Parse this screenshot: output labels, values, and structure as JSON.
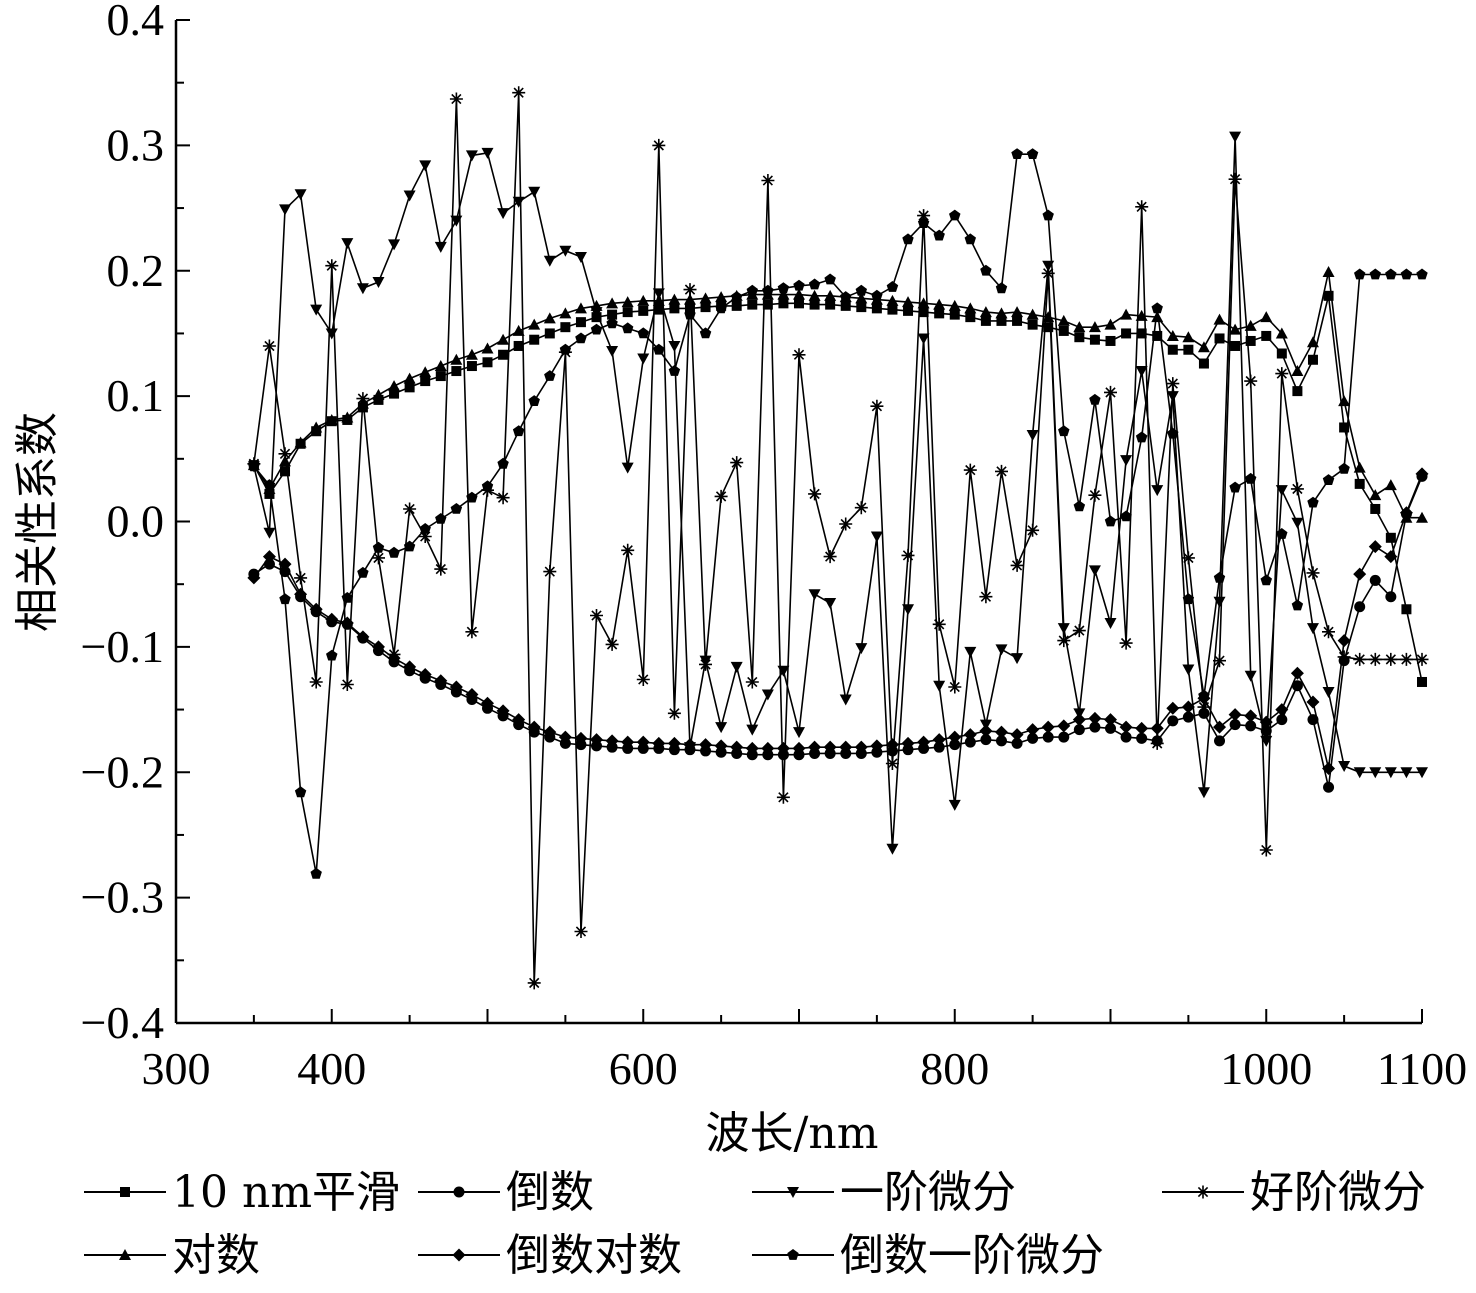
{
  "chart_data": {
    "type": "line",
    "xlabel": "波长/nm",
    "ylabel": "相关性系数",
    "xlim": [
      300,
      1100
    ],
    "ylim": [
      -0.4,
      0.4
    ],
    "xticks": [
      "300",
      "400",
      "600",
      "800",
      "1000",
      "1100"
    ],
    "yticks": [
      "0.4",
      "0.3",
      "0.2",
      "0.1",
      "0.0",
      "−0.1",
      "−0.2",
      "−0.3",
      "−0.4"
    ],
    "grid": false,
    "legend_position": "bottom",
    "x": [
      350,
      360,
      370,
      380,
      390,
      400,
      410,
      420,
      430,
      440,
      450,
      460,
      470,
      480,
      490,
      500,
      510,
      520,
      530,
      540,
      550,
      560,
      570,
      580,
      590,
      600,
      610,
      620,
      630,
      640,
      650,
      660,
      670,
      680,
      690,
      700,
      710,
      720,
      730,
      740,
      750,
      760,
      770,
      780,
      790,
      800,
      810,
      820,
      830,
      840,
      850,
      860,
      870,
      880,
      890,
      900,
      910,
      920,
      930,
      940,
      950,
      960,
      970,
      980,
      990,
      1000,
      1010,
      1020,
      1030,
      1040,
      1050,
      1060,
      1070,
      1080,
      1090,
      1100
    ],
    "series": [
      {
        "name": "10 nm平滑",
        "marker": "square",
        "values": [
          0.045,
          0.022,
          0.04,
          0.062,
          0.072,
          0.08,
          0.081,
          0.091,
          0.097,
          0.102,
          0.107,
          0.112,
          0.116,
          0.12,
          0.124,
          0.127,
          0.133,
          0.14,
          0.145,
          0.15,
          0.155,
          0.159,
          0.163,
          0.165,
          0.167,
          0.168,
          0.169,
          0.17,
          0.17,
          0.171,
          0.172,
          0.172,
          0.173,
          0.173,
          0.174,
          0.174,
          0.173,
          0.173,
          0.172,
          0.171,
          0.17,
          0.169,
          0.168,
          0.167,
          0.166,
          0.165,
          0.163,
          0.16,
          0.16,
          0.16,
          0.157,
          0.155,
          0.152,
          0.147,
          0.145,
          0.144,
          0.15,
          0.15,
          0.148,
          0.137,
          0.137,
          0.126,
          0.146,
          0.14,
          0.144,
          0.148,
          0.134,
          0.104,
          0.129,
          0.18,
          0.075,
          0.03,
          0.01,
          -0.013,
          -0.07,
          -0.128
        ]
      },
      {
        "name": "倒数",
        "marker": "circle",
        "values": [
          -0.042,
          -0.034,
          -0.04,
          -0.06,
          -0.072,
          -0.08,
          -0.082,
          -0.093,
          -0.103,
          -0.112,
          -0.119,
          -0.125,
          -0.13,
          -0.136,
          -0.142,
          -0.149,
          -0.155,
          -0.162,
          -0.168,
          -0.172,
          -0.177,
          -0.178,
          -0.179,
          -0.18,
          -0.181,
          -0.181,
          -0.181,
          -0.182,
          -0.182,
          -0.183,
          -0.184,
          -0.185,
          -0.186,
          -0.186,
          -0.186,
          -0.186,
          -0.185,
          -0.185,
          -0.185,
          -0.185,
          -0.184,
          -0.183,
          -0.182,
          -0.181,
          -0.18,
          -0.178,
          -0.176,
          -0.174,
          -0.175,
          -0.177,
          -0.173,
          -0.172,
          -0.172,
          -0.166,
          -0.164,
          -0.165,
          -0.172,
          -0.173,
          -0.175,
          -0.159,
          -0.156,
          -0.153,
          -0.175,
          -0.162,
          -0.163,
          -0.167,
          -0.158,
          -0.131,
          -0.158,
          -0.212,
          -0.111,
          -0.068,
          -0.047,
          -0.06,
          0.006,
          0.036
        ]
      },
      {
        "name": "一阶微分",
        "marker": "triangle-down",
        "values": [
          0.044,
          -0.009,
          0.249,
          0.261,
          0.169,
          0.15,
          0.222,
          0.186,
          0.191,
          0.221,
          0.26,
          0.284,
          0.219,
          0.24,
          0.292,
          0.294,
          0.246,
          0.255,
          0.263,
          0.208,
          0.216,
          0.211,
          0.167,
          0.136,
          0.043,
          0.13,
          0.182,
          0.14,
          -0.18,
          -0.111,
          -0.164,
          -0.116,
          -0.166,
          -0.138,
          -0.119,
          -0.168,
          -0.058,
          -0.065,
          -0.142,
          -0.101,
          -0.012,
          -0.261,
          -0.07,
          0.146,
          -0.131,
          -0.226,
          -0.104,
          -0.162,
          -0.102,
          -0.109,
          0.069,
          0.204,
          -0.085,
          -0.153,
          -0.039,
          -0.081,
          0.049,
          0.12,
          0.025,
          0.1,
          -0.118,
          -0.216,
          -0.064,
          0.307,
          -0.123,
          -0.175,
          0.025,
          -0.001,
          -0.085,
          -0.136,
          -0.195,
          -0.2,
          -0.2,
          -0.2,
          -0.2,
          -0.2
        ]
      },
      {
        "name": "好阶微分",
        "marker": "asterisk",
        "values": [
          0.046,
          0.14,
          0.054,
          -0.045,
          -0.128,
          0.204,
          -0.13,
          0.098,
          -0.029,
          -0.106,
          0.01,
          -0.012,
          -0.038,
          0.337,
          -0.088,
          0.025,
          0.019,
          0.342,
          -0.368,
          -0.04,
          0.135,
          -0.327,
          -0.075,
          -0.098,
          -0.023,
          -0.126,
          0.3,
          -0.153,
          0.185,
          -0.114,
          0.02,
          0.047,
          -0.128,
          0.272,
          -0.22,
          0.133,
          0.022,
          -0.028,
          -0.002,
          0.011,
          0.092,
          -0.193,
          -0.027,
          0.244,
          -0.082,
          -0.132,
          0.041,
          -0.06,
          0.04,
          -0.035,
          -0.007,
          0.198,
          -0.095,
          -0.087,
          0.021,
          0.103,
          -0.097,
          0.251,
          -0.177,
          0.11,
          -0.029,
          -0.148,
          -0.111,
          0.273,
          0.112,
          -0.262,
          0.118,
          0.026,
          -0.041,
          -0.088,
          -0.108,
          -0.11,
          -0.11,
          -0.11,
          -0.11,
          -0.11
        ]
      },
      {
        "name": "对数",
        "marker": "triangle-up",
        "values": [
          0.045,
          0.026,
          0.048,
          0.063,
          0.075,
          0.081,
          0.083,
          0.094,
          0.101,
          0.108,
          0.114,
          0.119,
          0.124,
          0.129,
          0.133,
          0.138,
          0.145,
          0.152,
          0.157,
          0.162,
          0.166,
          0.17,
          0.172,
          0.174,
          0.175,
          0.176,
          0.176,
          0.177,
          0.177,
          0.178,
          0.179,
          0.18,
          0.181,
          0.181,
          0.181,
          0.181,
          0.18,
          0.18,
          0.179,
          0.178,
          0.177,
          0.176,
          0.175,
          0.174,
          0.173,
          0.172,
          0.17,
          0.167,
          0.166,
          0.167,
          0.165,
          0.163,
          0.16,
          0.155,
          0.155,
          0.157,
          0.165,
          0.164,
          0.163,
          0.148,
          0.147,
          0.139,
          0.161,
          0.153,
          0.156,
          0.163,
          0.15,
          0.12,
          0.143,
          0.199,
          0.096,
          0.043,
          0.021,
          0.029,
          0.003,
          0.003
        ]
      },
      {
        "name": "倒数对数",
        "marker": "diamond",
        "values": [
          -0.045,
          -0.028,
          -0.034,
          -0.058,
          -0.07,
          -0.078,
          -0.081,
          -0.092,
          -0.1,
          -0.109,
          -0.116,
          -0.122,
          -0.127,
          -0.132,
          -0.138,
          -0.145,
          -0.151,
          -0.158,
          -0.164,
          -0.168,
          -0.172,
          -0.173,
          -0.174,
          -0.175,
          -0.176,
          -0.176,
          -0.177,
          -0.177,
          -0.178,
          -0.178,
          -0.179,
          -0.18,
          -0.181,
          -0.181,
          -0.181,
          -0.181,
          -0.18,
          -0.18,
          -0.18,
          -0.18,
          -0.179,
          -0.178,
          -0.177,
          -0.176,
          -0.174,
          -0.172,
          -0.17,
          -0.167,
          -0.168,
          -0.17,
          -0.166,
          -0.164,
          -0.163,
          -0.158,
          -0.157,
          -0.158,
          -0.164,
          -0.165,
          -0.165,
          -0.149,
          -0.148,
          -0.141,
          -0.164,
          -0.154,
          -0.155,
          -0.16,
          -0.15,
          -0.121,
          -0.144,
          -0.197,
          -0.095,
          -0.042,
          -0.02,
          -0.028,
          0.007,
          0.038
        ]
      },
      {
        "name": "倒数一阶微分",
        "marker": "pentagon",
        "values": [
          0.044,
          0.029,
          -0.062,
          -0.216,
          -0.281,
          -0.107,
          -0.061,
          -0.041,
          -0.021,
          -0.025,
          -0.02,
          -0.006,
          0.002,
          0.01,
          0.019,
          0.028,
          0.046,
          0.072,
          0.096,
          0.116,
          0.137,
          0.146,
          0.153,
          0.158,
          0.154,
          0.15,
          0.137,
          0.12,
          0.165,
          0.15,
          0.17,
          0.179,
          0.184,
          0.184,
          0.186,
          0.188,
          0.189,
          0.193,
          0.179,
          0.184,
          0.18,
          0.187,
          0.225,
          0.238,
          0.228,
          0.244,
          0.225,
          0.2,
          0.186,
          0.293,
          0.293,
          0.244,
          0.072,
          0.012,
          0.097,
          0.0,
          0.004,
          0.067,
          0.17,
          0.07,
          -0.062,
          -0.139,
          -0.045,
          0.027,
          0.034,
          -0.047,
          -0.01,
          -0.067,
          0.015,
          0.033,
          0.042,
          0.197,
          0.197,
          0.197,
          0.197,
          0.197
        ]
      }
    ]
  }
}
